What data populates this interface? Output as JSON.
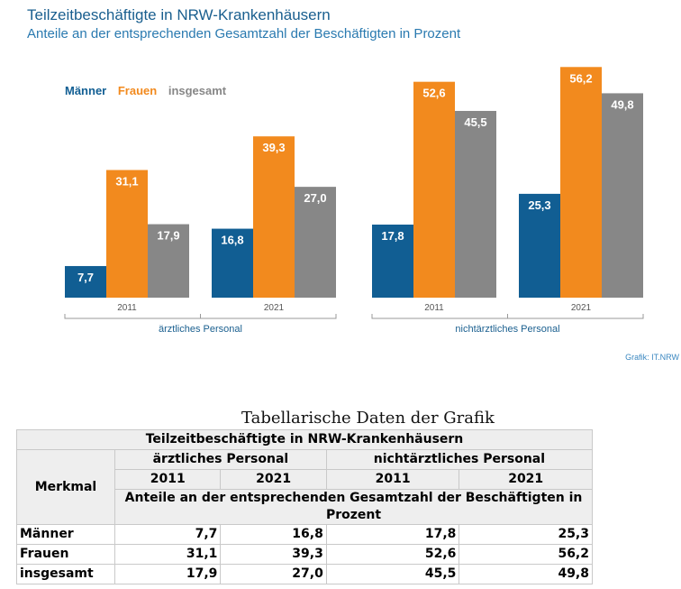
{
  "header": {
    "title": "Teilzeitbeschäftigte in NRW-Krankenhäusern",
    "subtitle": "Anteile an der entsprechenden Gesamtzahl der Beschäftigten in Prozent",
    "source": "Grafik: IT.NRW"
  },
  "colors": {
    "maenner": "#115e93",
    "frauen": "#f28a1e",
    "insgesamt": "#878787"
  },
  "chart_data": {
    "type": "bar",
    "title": "Teilzeitbeschäftigte in NRW-Krankenhäusern",
    "subtitle": "Anteile an der entsprechenden Gesamtzahl der Beschäftigten in Prozent",
    "legend": [
      "Männer",
      "Frauen",
      "insgesamt"
    ],
    "legend_position": "top-left",
    "groups": [
      {
        "label": "ärztliches Personal",
        "years": [
          {
            "year": "2011",
            "values": [
              7.7,
              31.1,
              17.9
            ],
            "labels": [
              "7,7",
              "31,1",
              "17,9"
            ]
          },
          {
            "year": "2021",
            "values": [
              16.8,
              39.3,
              27.0
            ],
            "labels": [
              "16,8",
              "39,3",
              "27,0"
            ]
          }
        ]
      },
      {
        "label": "nichtärztliches Personal",
        "years": [
          {
            "year": "2011",
            "values": [
              17.8,
              52.6,
              45.5
            ],
            "labels": [
              "17,8",
              "52,6",
              "45,5"
            ]
          },
          {
            "year": "2021",
            "values": [
              25.3,
              56.2,
              49.8
            ],
            "labels": [
              "25,3",
              "56,2",
              "49,8"
            ]
          }
        ]
      }
    ],
    "ylim": [
      0,
      60
    ],
    "grid": false
  },
  "table": {
    "caption": "Tabellarische Daten der Grafik",
    "title": "Teilzeitbeschäftigte in NRW-Krankenhäusern",
    "merkmal": "Merkmal",
    "group1": "ärztliches Personal",
    "group2": "nichtärztliches Personal",
    "years": [
      "2011",
      "2021",
      "2011",
      "2021"
    ],
    "unit_row": "Anteile an der entsprechenden Gesamtzahl der Beschäftigten in Prozent",
    "rows": [
      {
        "label": "Männer",
        "values": [
          "7,7",
          "16,8",
          "17,8",
          "25,3"
        ]
      },
      {
        "label": "Frauen",
        "values": [
          "31,1",
          "39,3",
          "52,6",
          "56,2"
        ]
      },
      {
        "label": "insgesamt",
        "values": [
          "17,9",
          "27,0",
          "45,5",
          "49,8"
        ]
      }
    ]
  }
}
